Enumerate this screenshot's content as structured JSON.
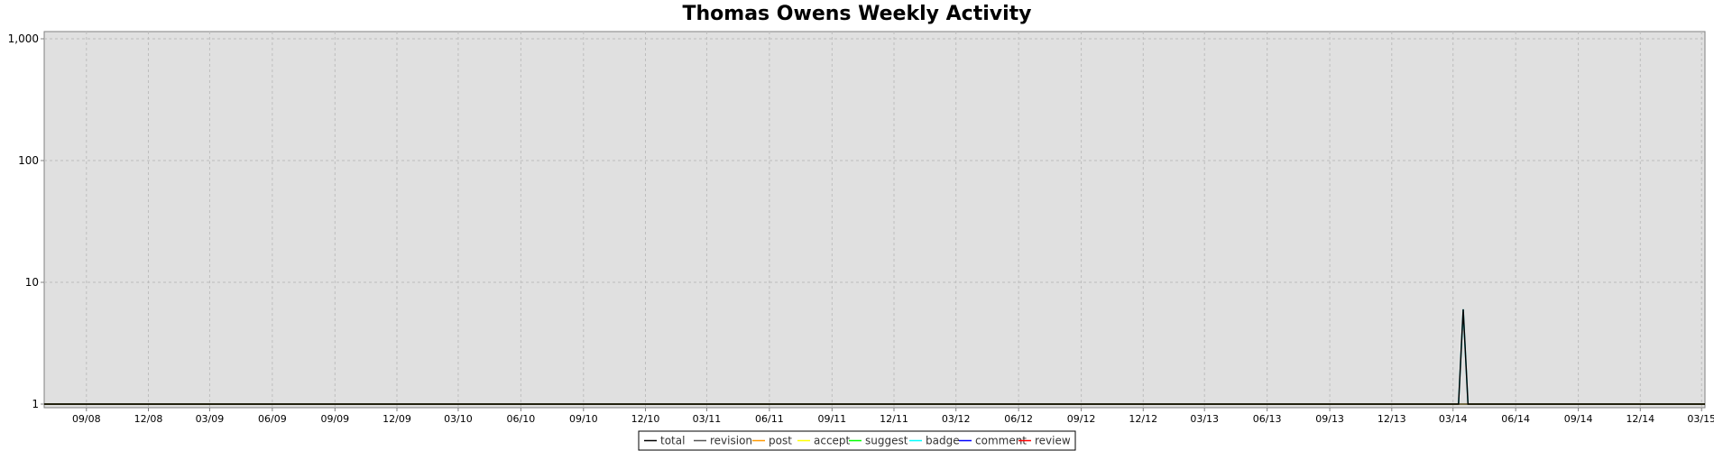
{
  "chart_data": {
    "type": "line",
    "title": "Thomas Owens Weekly Activity",
    "xlabel": "",
    "ylabel": "",
    "y_scale": "log",
    "ylim": [
      1,
      1000
    ],
    "y_ticks": [
      1,
      10,
      100,
      1000
    ],
    "y_tick_labels": [
      "1",
      "10",
      "100",
      "1,000"
    ],
    "x_range": [
      "2008-07-01",
      "2015-03-06"
    ],
    "x_ticks": [
      {
        "date": "2008-09-01",
        "label": "09/08"
      },
      {
        "date": "2008-12-01",
        "label": "12/08"
      },
      {
        "date": "2009-03-01",
        "label": "03/09"
      },
      {
        "date": "2009-06-01",
        "label": "06/09"
      },
      {
        "date": "2009-09-01",
        "label": "09/09"
      },
      {
        "date": "2009-12-01",
        "label": "12/09"
      },
      {
        "date": "2010-03-01",
        "label": "03/10"
      },
      {
        "date": "2010-06-01",
        "label": "06/10"
      },
      {
        "date": "2010-09-01",
        "label": "09/10"
      },
      {
        "date": "2010-12-01",
        "label": "12/10"
      },
      {
        "date": "2011-03-01",
        "label": "03/11"
      },
      {
        "date": "2011-06-01",
        "label": "06/11"
      },
      {
        "date": "2011-09-01",
        "label": "09/11"
      },
      {
        "date": "2011-12-01",
        "label": "12/11"
      },
      {
        "date": "2012-03-01",
        "label": "03/12"
      },
      {
        "date": "2012-06-01",
        "label": "06/12"
      },
      {
        "date": "2012-09-01",
        "label": "09/12"
      },
      {
        "date": "2012-12-01",
        "label": "12/12"
      },
      {
        "date": "2013-03-01",
        "label": "03/13"
      },
      {
        "date": "2013-06-01",
        "label": "06/13"
      },
      {
        "date": "2013-09-01",
        "label": "09/13"
      },
      {
        "date": "2013-12-01",
        "label": "12/13"
      },
      {
        "date": "2014-03-01",
        "label": "03/14"
      },
      {
        "date": "2014-06-01",
        "label": "06/14"
      },
      {
        "date": "2014-09-01",
        "label": "09/14"
      },
      {
        "date": "2014-12-01",
        "label": "12/14"
      },
      {
        "date": "2015-03-01",
        "label": "03/15"
      }
    ],
    "grid": true,
    "legend_position": "bottom",
    "series": [
      {
        "name": "total",
        "color": "#000000",
        "x": [
          "2008-07-01",
          "2014-03-09",
          "2014-03-16",
          "2014-03-23",
          "2015-03-06"
        ],
        "values": [
          1,
          1,
          6,
          1,
          1
        ]
      },
      {
        "name": "revision",
        "color": "#555555",
        "x": [
          "2008-07-01",
          "2015-03-06"
        ],
        "values": [
          1,
          1
        ]
      },
      {
        "name": "post",
        "color": "#ff9900",
        "x": [
          "2008-07-01",
          "2015-03-06"
        ],
        "values": [
          1,
          1
        ]
      },
      {
        "name": "accept",
        "color": "#ffff00",
        "x": [
          "2008-07-01",
          "2015-03-06"
        ],
        "values": [
          1,
          1
        ]
      },
      {
        "name": "suggest",
        "color": "#00ff00",
        "x": [
          "2008-07-01",
          "2015-03-06"
        ],
        "values": [
          1,
          1
        ]
      },
      {
        "name": "badge",
        "color": "#00ffff",
        "x": [
          "2008-07-01",
          "2014-03-09",
          "2014-03-16",
          "2014-03-23",
          "2015-03-06"
        ],
        "values": [
          1,
          1,
          6,
          1,
          1
        ]
      },
      {
        "name": "comment",
        "color": "#0000ff",
        "x": [
          "2008-07-01",
          "2015-03-06"
        ],
        "values": [
          1,
          1
        ]
      },
      {
        "name": "review",
        "color": "#ff0000",
        "x": [
          "2008-07-01",
          "2015-03-06"
        ],
        "values": [
          1,
          1
        ]
      }
    ]
  }
}
